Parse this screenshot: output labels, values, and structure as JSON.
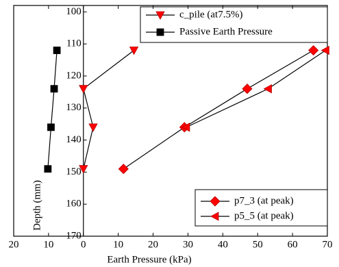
{
  "chart_data": {
    "type": "line",
    "xlabel": "Earth Pressure (kPa)",
    "ylabel": "Depth (mm)",
    "xlim": [
      -20,
      70
    ],
    "xticks": [
      {
        "value": -20,
        "label": "20"
      },
      {
        "value": -10,
        "label": "10"
      },
      0,
      10,
      20,
      30,
      40,
      50,
      60,
      70
    ],
    "ylim": [
      98,
      170
    ],
    "yticks": [
      100,
      110,
      120,
      130,
      140,
      150,
      160,
      170
    ],
    "y_inverted": true,
    "series": [
      {
        "name": "c_pile (at7.5%)",
        "color": "#ff0000",
        "marker": "triangle-down",
        "x": [
          14.5,
          0,
          2.8,
          0
        ],
        "y": [
          112,
          124,
          136,
          149
        ]
      },
      {
        "name": "Passive Earth Pressure",
        "color": "#000000",
        "marker": "square",
        "x": [
          -7.6,
          -8.4,
          -9.3,
          -10.2
        ],
        "y": [
          112,
          124,
          136,
          149
        ]
      },
      {
        "name": "p7_3 (at peak)",
        "color": "#ff0000",
        "marker": "diamond",
        "x": [
          66,
          47,
          29,
          11.5
        ],
        "y": [
          112,
          124,
          136,
          149
        ]
      },
      {
        "name": "p5_5 (at peak)",
        "color": "#ff0000",
        "marker": "triangle-left",
        "x": [
          69.5,
          53,
          29.5
        ],
        "y": [
          112,
          124,
          136
        ]
      }
    ]
  }
}
